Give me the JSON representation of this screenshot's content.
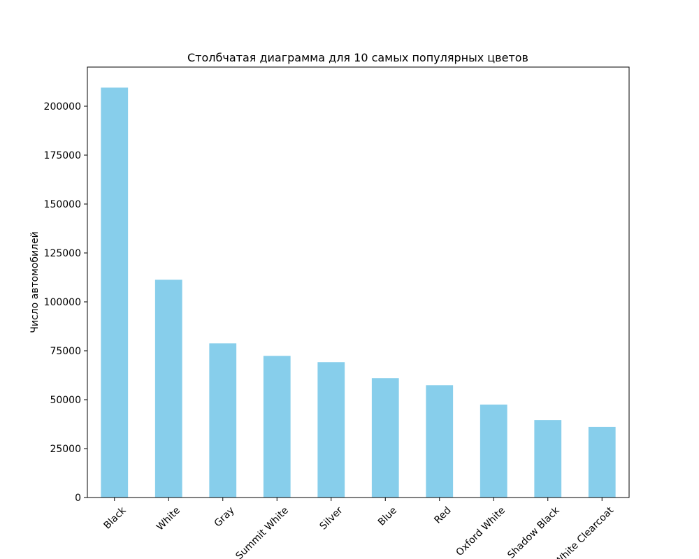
{
  "chart_data": {
    "type": "bar",
    "title": "Столбчатая диаграмма для 10 самых популярных цветов",
    "xlabel": "",
    "ylabel": "Число автомобилей",
    "categories": [
      "Black",
      "White",
      "Gray",
      "Summit White",
      "Silver",
      "Blue",
      "Red",
      "Oxford White",
      "Shadow Black",
      "White Clearcoat"
    ],
    "values": [
      209500,
      111300,
      78800,
      72400,
      69200,
      61000,
      57400,
      47500,
      39600,
      36100
    ],
    "yticks": [
      0,
      25000,
      50000,
      75000,
      100000,
      125000,
      150000,
      175000,
      200000
    ],
    "ylim": [
      0,
      220000
    ],
    "x_tick_rotation": 45,
    "bar_color": "#87ceeb",
    "grid": false,
    "legend": "none"
  }
}
